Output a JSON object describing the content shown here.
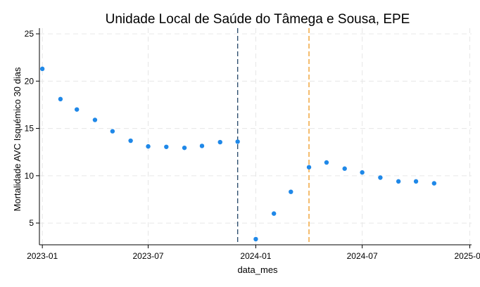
{
  "chart_data": {
    "type": "scatter",
    "title": "Unidade Local de Saúde do Tâmega e Sousa, EPE",
    "xlabel": "data_mes",
    "ylabel": "Mortalidade AVC Isquémico 30 dias",
    "x_ticks": [
      "2023-01",
      "2023-07",
      "2024-01",
      "2024-07",
      "2025-01"
    ],
    "y_ticks": [
      5,
      10,
      15,
      20,
      25
    ],
    "xlim": [
      "2022-12-27",
      "2025-01-04"
    ],
    "ylim": [
      2.7,
      25.6
    ],
    "grid": true,
    "point_color": "#1f88e8",
    "points": [
      {
        "x": "2023-01-01",
        "y": 21.3
      },
      {
        "x": "2023-02-01",
        "y": 18.1
      },
      {
        "x": "2023-03-01",
        "y": 17.0
      },
      {
        "x": "2023-04-01",
        "y": 15.9
      },
      {
        "x": "2023-05-01",
        "y": 14.7
      },
      {
        "x": "2023-06-01",
        "y": 13.7
      },
      {
        "x": "2023-07-01",
        "y": 13.1
      },
      {
        "x": "2023-08-01",
        "y": 13.05
      },
      {
        "x": "2023-09-01",
        "y": 12.95
      },
      {
        "x": "2023-10-01",
        "y": 13.15
      },
      {
        "x": "2023-11-01",
        "y": 13.55
      },
      {
        "x": "2023-12-01",
        "y": 13.6
      },
      {
        "x": "2024-01-01",
        "y": 3.3
      },
      {
        "x": "2024-02-01",
        "y": 6.0
      },
      {
        "x": "2024-03-01",
        "y": 8.3
      },
      {
        "x": "2024-04-01",
        "y": 10.9
      },
      {
        "x": "2024-05-01",
        "y": 11.4
      },
      {
        "x": "2024-06-01",
        "y": 10.75
      },
      {
        "x": "2024-07-01",
        "y": 10.35
      },
      {
        "x": "2024-08-01",
        "y": 9.8
      },
      {
        "x": "2024-09-01",
        "y": 9.4
      },
      {
        "x": "2024-10-01",
        "y": 9.4
      },
      {
        "x": "2024-11-01",
        "y": 9.2
      }
    ],
    "reference_lines": [
      {
        "x": "2023-12-01",
        "color": "#2f4f6f",
        "style": "dashed"
      },
      {
        "x": "2024-04-01",
        "color": "#f0a030",
        "style": "dashed"
      }
    ]
  }
}
